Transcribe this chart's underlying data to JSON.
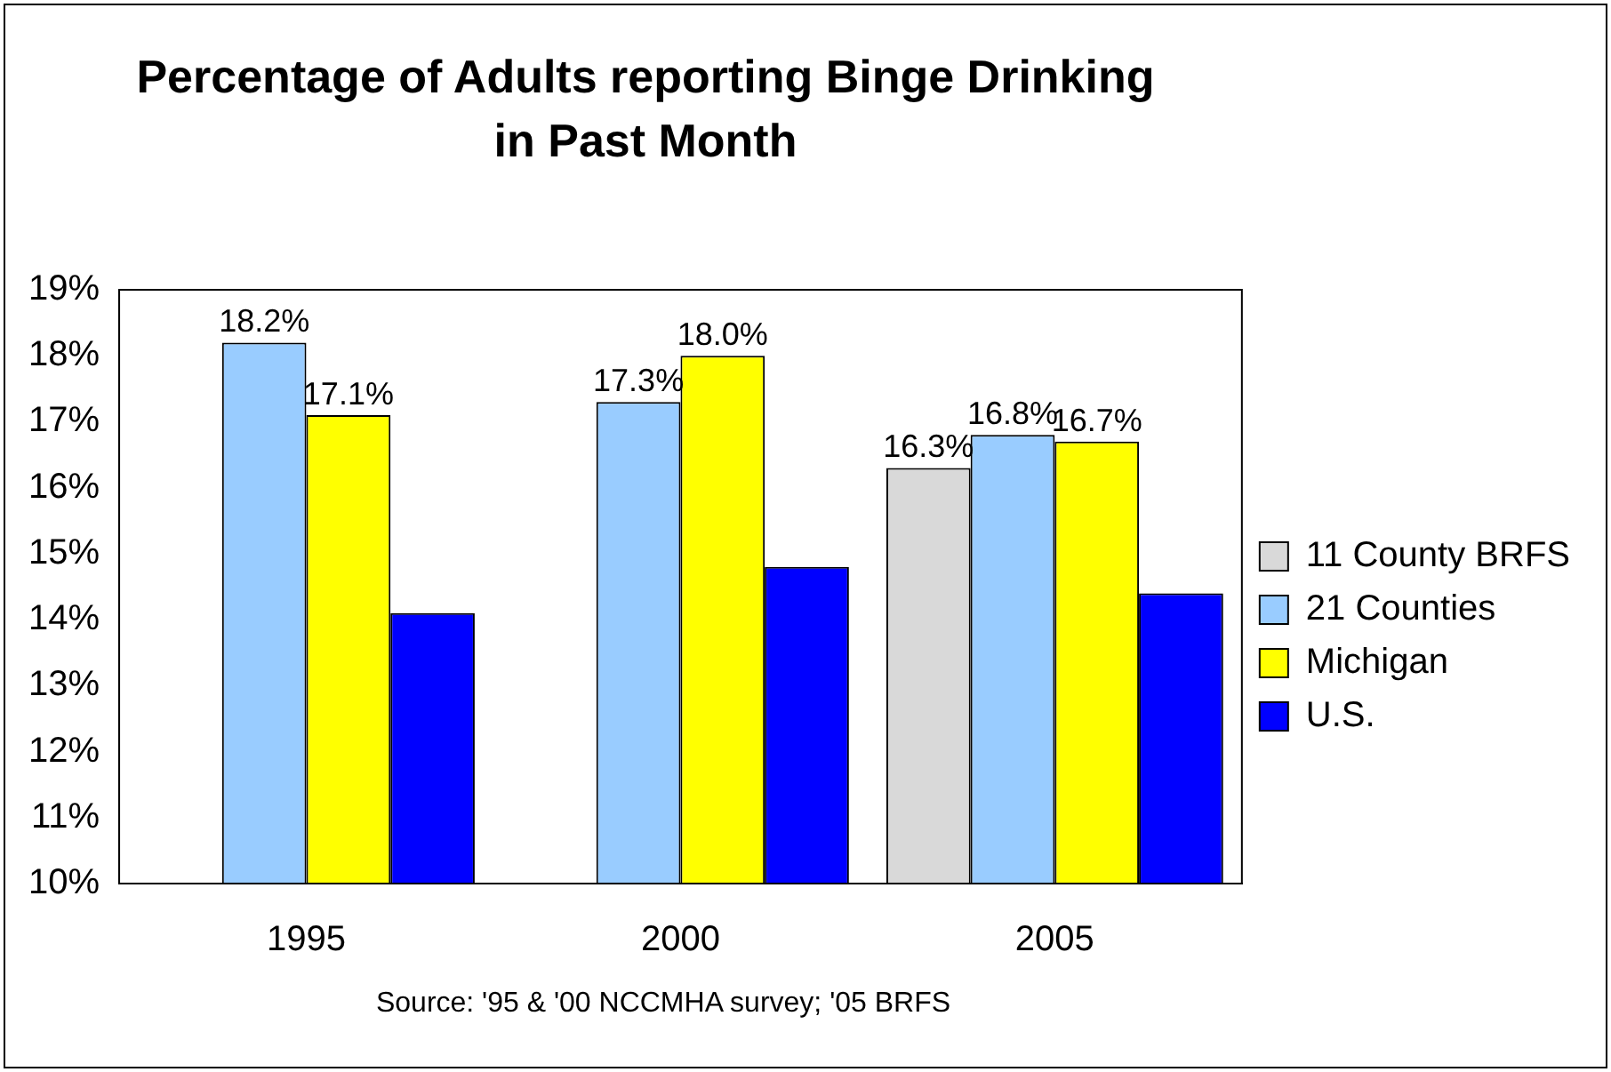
{
  "chart_data": {
    "type": "bar",
    "title": "Percentage of Adults reporting Binge Drinking in Past Month",
    "categories": [
      "1995",
      "2000",
      "2005"
    ],
    "series": [
      {
        "name": "11 County BRFS",
        "color": "#d9d9d9",
        "values": [
          null,
          null,
          16.3
        ],
        "value_labels": [
          null,
          null,
          "16.3%"
        ]
      },
      {
        "name": "21 Counties",
        "color": "#99ccff",
        "values": [
          18.2,
          17.3,
          16.8
        ],
        "value_labels": [
          "18.2%",
          "17.3%",
          "16.8%"
        ]
      },
      {
        "name": "Michigan",
        "color": "#ffff00",
        "values": [
          17.1,
          18.0,
          16.7
        ],
        "value_labels": [
          "17.1%",
          "18.0%",
          "16.7%"
        ]
      },
      {
        "name": "U.S.",
        "color": "#0000ff",
        "values": [
          14.1,
          14.8,
          14.4
        ]
      }
    ],
    "ylim": [
      10,
      19
    ],
    "yticks": [
      {
        "value": 10,
        "label": "10%"
      },
      {
        "value": 11,
        "label": "11%"
      },
      {
        "value": 12,
        "label": "12%"
      },
      {
        "value": 13,
        "label": "13%"
      },
      {
        "value": 14,
        "label": "14%"
      },
      {
        "value": 15,
        "label": "15%"
      },
      {
        "value": 16,
        "label": "16%"
      },
      {
        "value": 17,
        "label": "17%"
      },
      {
        "value": 18,
        "label": "18%"
      },
      {
        "value": 19,
        "label": "19%"
      }
    ],
    "grid": false,
    "legend": "right",
    "annotations": [
      "Source: '95 & '00 NCCMHA survey; '05 BRFS"
    ]
  }
}
